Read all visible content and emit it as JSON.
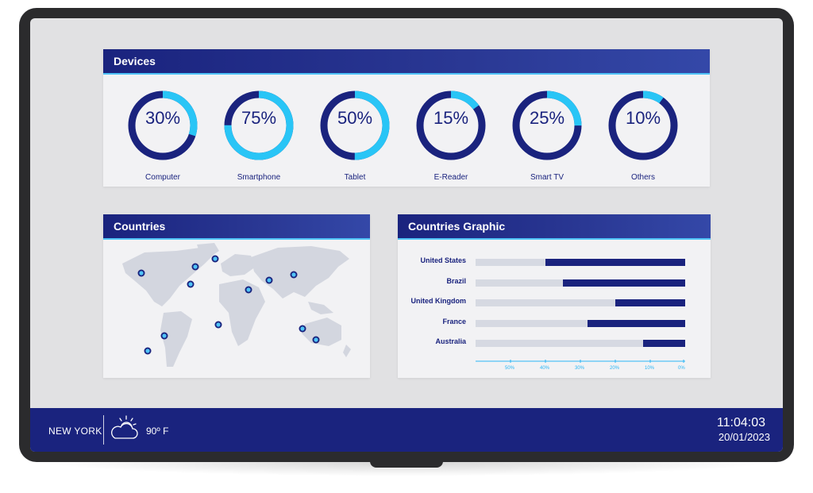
{
  "devices": {
    "title": "Devices",
    "items": [
      {
        "label": "Computer",
        "percent": 30,
        "text": "30%"
      },
      {
        "label": "Smartphone",
        "percent": 75,
        "text": "75%"
      },
      {
        "label": "Tablet",
        "percent": 50,
        "text": "50%"
      },
      {
        "label": "E-Reader",
        "percent": 15,
        "text": "15%"
      },
      {
        "label": "Smart TV",
        "percent": 25,
        "text": "25%"
      },
      {
        "label": "Others",
        "percent": 10,
        "text": "10%"
      }
    ],
    "colors": {
      "accent": "#29c5f6",
      "base": "#1a237e"
    }
  },
  "countries": {
    "title": "Countries"
  },
  "graphic": {
    "title": "Countries Graphic",
    "ticks": [
      "50%",
      "40%",
      "30%",
      "20%",
      "10%",
      "0%"
    ]
  },
  "chart_data": {
    "type": "bar",
    "title": "Countries Graphic",
    "categories": [
      "United States",
      "Brazil",
      "United Kingdom",
      "France",
      "Australia"
    ],
    "values": [
      40,
      35,
      20,
      28,
      12
    ],
    "xlim": [
      60,
      0
    ],
    "tick_labels": [
      "50%",
      "40%",
      "30%",
      "20%",
      "10%",
      "0%"
    ]
  },
  "footer": {
    "city": "NEW YORK",
    "temperature": "90º F",
    "weather_icon": "partly-cloudy-icon",
    "time": "11:04:03",
    "date": "20/01/2023"
  }
}
